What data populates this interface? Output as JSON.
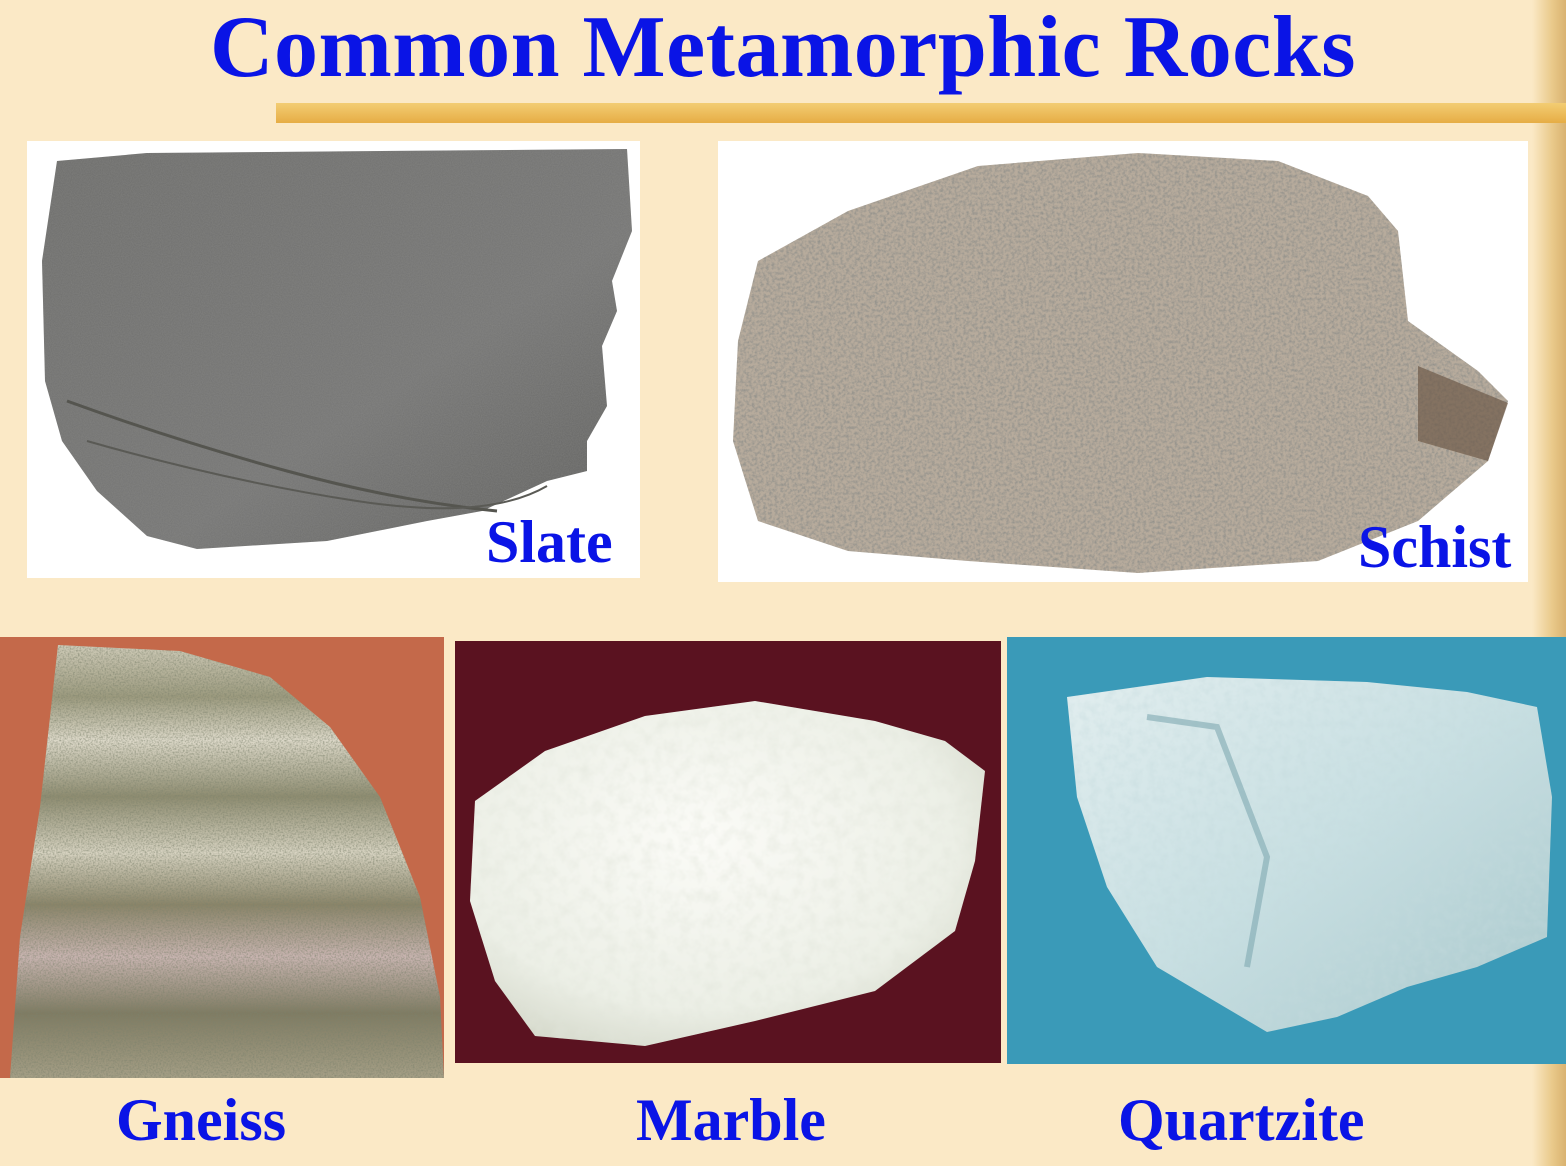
{
  "title": "Common Metamorphic Rocks",
  "colors": {
    "background": "#fbe9c6",
    "title_text": "#0a14e6",
    "label_text": "#0a14e6",
    "title_rule": "#f0c266"
  },
  "rocks": [
    {
      "name": "Slate",
      "photo_background": "#ffffff",
      "rock_color": "#6f6f6d"
    },
    {
      "name": "Schist",
      "photo_background": "#ffffff",
      "rock_color": "#a89a8a"
    },
    {
      "name": "Gneiss",
      "photo_background": "#c4694a",
      "rock_color": "#8a8a6c"
    },
    {
      "name": "Marble",
      "photo_background": "#5a1220",
      "rock_color": "#f2f2ee"
    },
    {
      "name": "Quartzite",
      "photo_background": "#3a9ab8",
      "rock_color": "#cfe3e6"
    }
  ]
}
